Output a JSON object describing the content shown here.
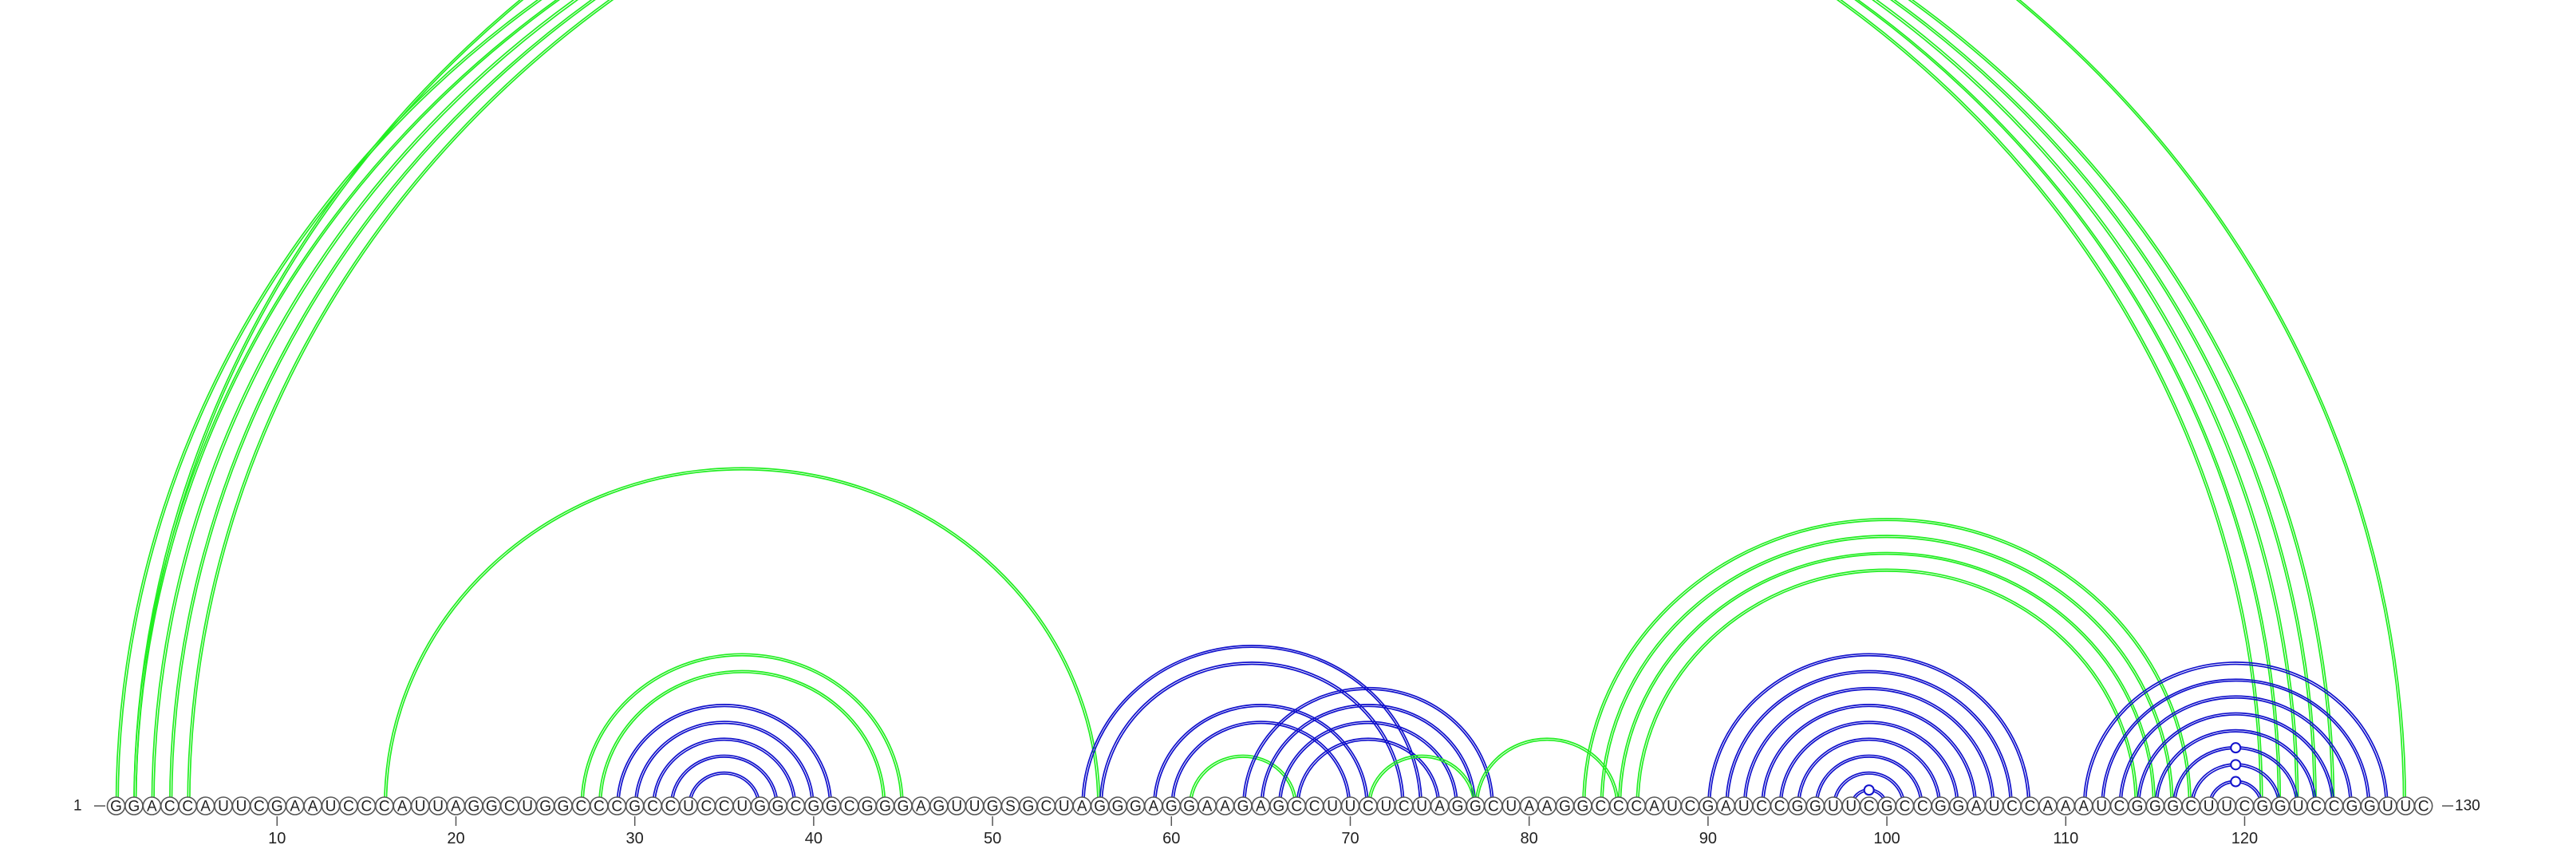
{
  "diagram": {
    "type": "rna-arc-diagram",
    "sequence": "GGACCAUUCGAAUCCCAUUAGGCUGGCCCGCCUCCUGGCGGCGGGAGUUGSGCUAGGGAGGAAGAGCCUUCUCUAGGCUAAGGCCCAUCGAUCCGGUUCGCCGGAUCCAAAUCGGGCUUCGGUCCGGUUC",
    "start_label": "1",
    "end_label": "130",
    "axis_ticks": [
      10,
      20,
      30,
      40,
      50,
      60,
      70,
      80,
      90,
      100,
      110,
      120
    ],
    "colors": {
      "green": "#22ee22",
      "blue": "#1111cc"
    },
    "arc_groups": [
      {
        "color": "green",
        "pairs": [
          [
            1,
            121
          ],
          [
            2,
            122
          ],
          [
            3,
            123
          ],
          [
            4,
            124
          ],
          [
            5,
            125
          ]
        ]
      },
      {
        "color": "green",
        "pairs": [
          [
            2,
            129
          ]
        ]
      },
      {
        "color": "green",
        "pairs": [
          [
            16,
            56
          ]
        ]
      },
      {
        "color": "green",
        "pairs": [
          [
            27,
            45
          ],
          [
            28,
            44
          ]
        ]
      },
      {
        "color": "blue",
        "pairs": [
          [
            29,
            41
          ],
          [
            30,
            40
          ],
          [
            31,
            39
          ],
          [
            32,
            38
          ],
          [
            33,
            37
          ]
        ]
      },
      {
        "color": "blue",
        "pairs": [
          [
            55,
            74
          ],
          [
            56,
            73
          ]
        ]
      },
      {
        "color": "blue",
        "pairs": [
          [
            59,
            71
          ],
          [
            60,
            70
          ]
        ]
      },
      {
        "color": "green",
        "pairs": [
          [
            61,
            67
          ]
        ]
      },
      {
        "color": "blue",
        "pairs": [
          [
            64,
            78
          ],
          [
            65,
            77
          ],
          [
            66,
            76
          ],
          [
            67,
            75
          ]
        ]
      },
      {
        "color": "green",
        "pairs": [
          [
            71,
            77
          ]
        ]
      },
      {
        "color": "green",
        "pairs": [
          [
            77,
            85
          ]
        ]
      },
      {
        "color": "green",
        "pairs": [
          [
            83,
            117
          ],
          [
            84,
            116
          ],
          [
            85,
            115
          ],
          [
            86,
            114
          ]
        ]
      },
      {
        "color": "blue",
        "pairs": [
          [
            90,
            108
          ],
          [
            91,
            107
          ],
          [
            92,
            106
          ],
          [
            93,
            105
          ],
          [
            94,
            104
          ],
          [
            95,
            103
          ],
          [
            96,
            102
          ],
          [
            97,
            101
          ],
          [
            98,
            100
          ]
        ]
      },
      {
        "color": "blue",
        "pairs": [
          [
            111,
            128
          ],
          [
            112,
            127
          ],
          [
            113,
            126
          ],
          [
            114,
            125
          ],
          [
            115,
            124
          ],
          [
            116,
            123
          ],
          [
            117,
            122
          ],
          [
            118,
            121
          ]
        ]
      }
    ],
    "markers": [
      {
        "color": "green",
        "pair": [
          2,
          129
        ]
      },
      {
        "color": "blue",
        "pair": [
          98,
          100
        ]
      },
      {
        "color": "blue",
        "pair": [
          116,
          123
        ]
      },
      {
        "color": "blue",
        "pair": [
          117,
          122
        ]
      },
      {
        "color": "blue",
        "pair": [
          118,
          121
        ]
      }
    ]
  }
}
